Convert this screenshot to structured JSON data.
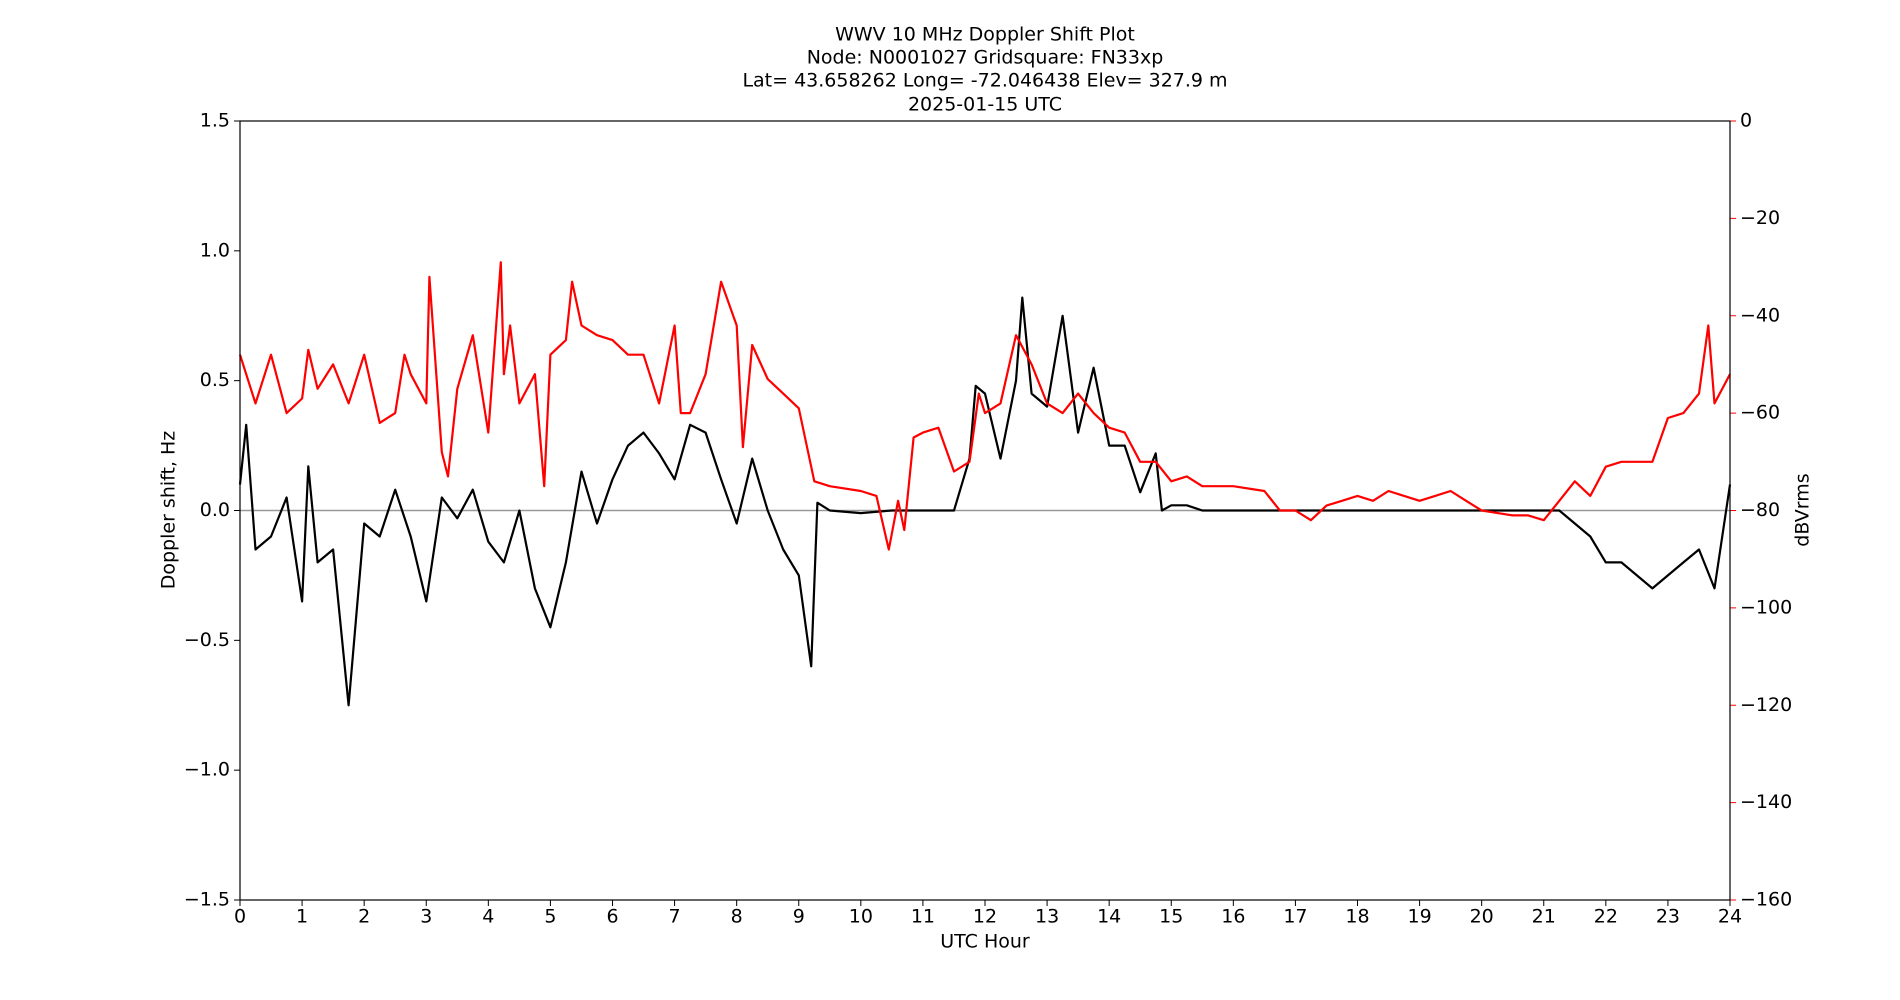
{
  "chart_data": {
    "type": "line",
    "title": [
      "WWV 10 MHz Doppler Shift Plot",
      "Node:  N0001027     Gridsquare:  FN33xp",
      "Lat=   43.658262    Long= -72.046438    Elev= 327.9 m",
      "2025-01-15  UTC"
    ],
    "xlabel": "UTC Hour",
    "ylabel": "Doppler shift, Hz",
    "y2label": "dBVrms",
    "xlim": [
      0,
      24
    ],
    "xticks": [
      0,
      1,
      2,
      3,
      4,
      5,
      6,
      7,
      8,
      9,
      10,
      11,
      12,
      13,
      14,
      15,
      16,
      17,
      18,
      19,
      20,
      21,
      22,
      23,
      24
    ],
    "ylim": [
      -1.5,
      1.5
    ],
    "yticks": [
      {
        "value": -1.5,
        "label": "−1.5"
      },
      {
        "value": -1.0,
        "label": "−1.0"
      },
      {
        "value": -0.5,
        "label": "−0.5"
      },
      {
        "value": 0,
        "label": "0.0"
      },
      0.5,
      {
        "value": 1.0,
        "label": "1.0"
      },
      1.5
    ],
    "y2lim": [
      -160,
      0
    ],
    "y2ticks": [
      {
        "value": -160,
        "label": "−160"
      },
      {
        "value": -140,
        "label": "−140"
      },
      {
        "value": -120,
        "label": "−120"
      },
      {
        "value": -100,
        "label": "−100"
      },
      {
        "value": -80,
        "label": "−80"
      },
      {
        "value": -60,
        "label": "−60"
      },
      {
        "value": -40,
        "label": "−40"
      },
      {
        "value": -20,
        "label": "−20"
      },
      0
    ],
    "y2color": "#ff0000",
    "hline": 0,
    "series": [
      {
        "name": "Doppler shift",
        "color": "#000000",
        "axis": "y",
        "x": [
          0,
          0.1,
          0.25,
          0.5,
          0.75,
          1.0,
          1.1,
          1.25,
          1.5,
          1.75,
          2.0,
          2.25,
          2.5,
          2.75,
          3.0,
          3.25,
          3.5,
          3.75,
          4.0,
          4.25,
          4.5,
          4.75,
          5.0,
          5.25,
          5.5,
          5.75,
          6.0,
          6.25,
          6.5,
          6.75,
          7.0,
          7.25,
          7.5,
          7.75,
          8.0,
          8.25,
          8.5,
          8.75,
          9.0,
          9.2,
          9.3,
          9.5,
          10.0,
          10.5,
          11.0,
          11.5,
          11.75,
          11.85,
          12.0,
          12.25,
          12.5,
          12.6,
          12.75,
          13.0,
          13.25,
          13.5,
          13.75,
          14.0,
          14.25,
          14.5,
          14.75,
          14.85,
          15.0,
          15.25,
          15.5,
          16,
          17,
          18,
          19,
          20,
          21,
          21.25,
          21.5,
          21.75,
          22.0,
          22.25,
          22.5,
          22.75,
          23.0,
          23.25,
          23.5,
          23.75,
          24.0
        ],
        "values": [
          0.1,
          0.33,
          -0.15,
          -0.1,
          0.05,
          -0.35,
          0.17,
          -0.2,
          -0.15,
          -0.75,
          -0.05,
          -0.1,
          0.08,
          -0.1,
          -0.35,
          0.05,
          -0.03,
          0.08,
          -0.12,
          -0.2,
          0.0,
          -0.3,
          -0.45,
          -0.2,
          0.15,
          -0.05,
          0.12,
          0.25,
          0.3,
          0.22,
          0.12,
          0.33,
          0.3,
          0.12,
          -0.05,
          0.2,
          0.0,
          -0.15,
          -0.25,
          -0.6,
          0.03,
          0.0,
          -0.01,
          0.0,
          0.0,
          0.0,
          0.2,
          0.48,
          0.45,
          0.2,
          0.5,
          0.82,
          0.45,
          0.4,
          0.75,
          0.3,
          0.55,
          0.25,
          0.25,
          0.07,
          0.22,
          0.0,
          0.02,
          0.02,
          0.0,
          0,
          0,
          0,
          0,
          0,
          0,
          0.0,
          -0.05,
          -0.1,
          -0.2,
          -0.2,
          -0.25,
          -0.3,
          -0.25,
          -0.2,
          -0.15,
          -0.3,
          0.1
        ]
      },
      {
        "name": "dBVrms",
        "color": "#ff0000",
        "axis": "y2",
        "x": [
          0,
          0.25,
          0.5,
          0.75,
          1.0,
          1.1,
          1.25,
          1.5,
          1.75,
          2.0,
          2.25,
          2.5,
          2.65,
          2.75,
          3.0,
          3.05,
          3.25,
          3.35,
          3.5,
          3.75,
          4.0,
          4.2,
          4.25,
          4.35,
          4.5,
          4.75,
          4.9,
          5.0,
          5.25,
          5.35,
          5.5,
          5.75,
          6.0,
          6.25,
          6.5,
          6.75,
          7.0,
          7.1,
          7.25,
          7.5,
          7.75,
          8.0,
          8.1,
          8.25,
          8.5,
          8.75,
          9.0,
          9.25,
          9.5,
          10.0,
          10.25,
          10.45,
          10.6,
          10.7,
          10.85,
          11.0,
          11.25,
          11.5,
          11.75,
          11.9,
          12.0,
          12.25,
          12.5,
          12.75,
          13.0,
          13.25,
          13.5,
          13.75,
          14.0,
          14.25,
          14.5,
          14.75,
          15.0,
          15.25,
          15.5,
          16.0,
          16.5,
          16.75,
          17.0,
          17.25,
          17.5,
          17.75,
          18.0,
          18.25,
          18.5,
          18.75,
          19.0,
          19.25,
          19.5,
          19.75,
          20.0,
          20.5,
          20.75,
          21.0,
          21.25,
          21.5,
          21.75,
          22.0,
          22.25,
          22.5,
          22.75,
          23.0,
          23.25,
          23.5,
          23.65,
          23.75,
          24.0
        ],
        "values": [
          -48,
          -58,
          -48,
          -60,
          -57,
          -47,
          -55,
          -50,
          -58,
          -48,
          -62,
          -60,
          -48,
          -52,
          -58,
          -32,
          -68,
          -73,
          -55,
          -44,
          -64,
          -29,
          -52,
          -42,
          -58,
          -52,
          -75,
          -48,
          -45,
          -33,
          -42,
          -44,
          -45,
          -48,
          -48,
          -58,
          -42,
          -60,
          -60,
          -52,
          -33,
          -42,
          -67,
          -46,
          -53,
          -56,
          -59,
          -74,
          -75,
          -76,
          -77,
          -88,
          -78,
          -84,
          -65,
          -64,
          -63,
          -72,
          -70,
          -56,
          -60,
          -58,
          -44,
          -50,
          -58,
          -60,
          -56,
          -60,
          -63,
          -64,
          -70,
          -70,
          -74,
          -73,
          -75,
          -75,
          -76,
          -80,
          -80,
          -82,
          -79,
          -78,
          -77,
          -78,
          -76,
          -77,
          -78,
          -77,
          -76,
          -78,
          -80,
          -81,
          -81,
          -82,
          -78,
          -74,
          -77,
          -71,
          -70,
          -70,
          -70,
          -61,
          -60,
          -56,
          -42,
          -58,
          -52
        ]
      }
    ]
  }
}
